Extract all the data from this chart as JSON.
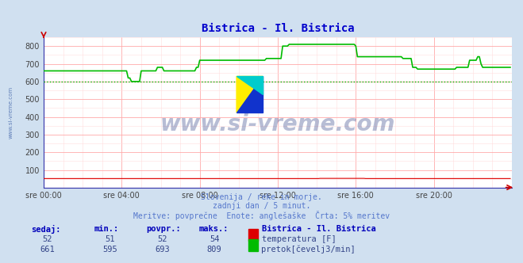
{
  "title": "Bistrica - Il. Bistrica",
  "title_color": "#0000cc",
  "bg_color": "#d0e0f0",
  "plot_bg_color": "#ffffff",
  "grid_color_major": "#ffaaaa",
  "grid_color_minor": "#ffdddd",
  "xlim": [
    0,
    288
  ],
  "ylim": [
    0,
    850
  ],
  "yticks": [
    100,
    200,
    300,
    400,
    500,
    600,
    700,
    800
  ],
  "xtick_labels": [
    "sre 00:00",
    "sre 04:00",
    "sre 08:00",
    "sre 12:00",
    "sre 16:00",
    "sre 20:00"
  ],
  "xtick_positions": [
    0,
    48,
    96,
    144,
    192,
    240
  ],
  "temp_color": "#dd0000",
  "flow_color": "#00bb00",
  "avg_line_color": "#00bb00",
  "avg_line_value": 600,
  "watermark": "www.si-vreme.com",
  "watermark_color": "#334488",
  "subtitle1": "Slovenija / reke in morje.",
  "subtitle2": "zadnji dan / 5 minut.",
  "subtitle3": "Meritve: povprečne  Enote: anglešaške  Črta: 5% meritev",
  "subtitle_color": "#5577cc",
  "footer_label_color": "#0000bb",
  "footer_value_color": "#334488",
  "legend_title": "Bistrica - Il. Bistrica",
  "legend_temp_label": "temperatura [F]",
  "legend_flow_label": "pretok[čevelj3/min]",
  "stat_headers": [
    "sedaj:",
    "min.:",
    "povpr.:",
    "maks.:"
  ],
  "stat_temp": [
    52,
    51,
    52,
    54
  ],
  "stat_flow": [
    661,
    595,
    693,
    809
  ],
  "temp_data_raw": [
    52,
    52,
    52,
    52,
    52,
    52,
    52,
    52,
    52,
    52,
    52,
    52,
    52,
    52,
    52,
    52,
    52,
    52,
    52,
    52,
    52,
    52,
    52,
    52,
    52,
    52,
    52,
    52,
    52,
    52,
    52,
    52,
    52,
    52,
    52,
    52,
    52,
    52,
    52,
    52,
    52,
    52,
    52,
    52,
    52,
    52,
    52,
    52,
    52,
    52,
    52,
    52,
    52,
    52,
    52,
    52,
    52,
    52,
    52,
    52,
    52,
    52,
    52,
    52,
    52,
    52,
    52,
    52,
    52,
    52,
    52,
    52,
    52,
    52,
    52,
    52,
    52,
    52,
    52,
    52,
    52,
    52,
    52,
    52,
    52,
    52,
    52,
    52,
    52,
    52,
    52,
    52,
    52,
    52,
    52,
    52,
    52,
    52,
    52,
    52,
    52,
    52,
    52,
    52,
    52,
    52,
    52,
    52,
    52,
    52,
    52,
    52,
    52,
    52,
    52,
    52,
    52,
    52,
    52,
    52,
    52,
    52,
    52,
    52,
    52,
    52,
    52,
    52,
    52,
    52,
    52,
    52,
    52,
    52,
    52,
    52,
    52,
    52,
    52,
    52,
    52,
    52,
    52,
    52,
    52,
    52,
    52,
    52,
    52,
    52,
    52,
    52,
    52,
    52,
    52,
    52,
    52,
    52,
    52,
    52,
    52,
    52,
    52,
    52,
    52,
    52,
    52,
    52,
    52,
    52,
    53,
    53,
    53,
    53,
    53,
    53,
    53,
    53,
    53,
    53,
    53,
    53,
    53,
    53,
    53,
    53,
    53,
    53,
    53,
    53,
    53,
    53,
    53,
    53,
    53,
    53,
    53,
    53,
    52,
    52,
    52,
    52,
    52,
    52,
    52,
    52,
    52,
    52,
    52,
    52,
    52,
    52,
    52,
    52,
    52,
    52,
    52,
    52,
    52,
    52,
    52,
    52,
    52,
    52,
    52,
    52,
    52,
    52,
    52,
    52,
    52,
    52,
    52,
    52,
    52,
    52,
    52,
    52,
    52,
    52,
    52,
    52,
    52,
    52,
    52,
    52,
    52,
    52,
    52,
    52,
    52,
    52,
    52,
    52,
    52,
    52,
    52,
    52,
    52,
    52,
    52,
    52,
    52,
    52,
    52,
    52,
    52,
    52,
    52,
    52,
    52,
    52,
    52,
    52,
    52,
    52,
    52,
    52,
    52,
    52,
    52,
    52,
    52,
    52,
    52,
    52,
    52,
    52
  ],
  "flow_data_raw": [
    660,
    660,
    660,
    660,
    660,
    660,
    660,
    660,
    660,
    660,
    660,
    660,
    660,
    660,
    660,
    660,
    660,
    660,
    660,
    660,
    660,
    660,
    660,
    660,
    660,
    660,
    660,
    660,
    660,
    660,
    660,
    660,
    660,
    660,
    660,
    660,
    660,
    660,
    660,
    660,
    660,
    660,
    660,
    660,
    660,
    660,
    660,
    660,
    660,
    660,
    660,
    660,
    620,
    620,
    600,
    600,
    600,
    600,
    600,
    600,
    660,
    660,
    660,
    660,
    660,
    660,
    660,
    660,
    660,
    660,
    680,
    680,
    680,
    680,
    660,
    660,
    660,
    660,
    660,
    660,
    660,
    660,
    660,
    660,
    660,
    660,
    660,
    660,
    660,
    660,
    660,
    660,
    660,
    660,
    680,
    680,
    720,
    720,
    720,
    720,
    720,
    720,
    720,
    720,
    720,
    720,
    720,
    720,
    720,
    720,
    720,
    720,
    720,
    720,
    720,
    720,
    720,
    720,
    720,
    720,
    720,
    720,
    720,
    720,
    720,
    720,
    720,
    720,
    720,
    720,
    720,
    720,
    720,
    720,
    720,
    720,
    720,
    730,
    730,
    730,
    730,
    730,
    730,
    730,
    730,
    730,
    730,
    800,
    800,
    800,
    800,
    810,
    810,
    810,
    810,
    810,
    810,
    810,
    810,
    810,
    810,
    810,
    810,
    810,
    810,
    810,
    810,
    810,
    810,
    810,
    810,
    810,
    810,
    810,
    810,
    810,
    810,
    810,
    810,
    810,
    810,
    810,
    810,
    810,
    810,
    810,
    810,
    810,
    810,
    810,
    810,
    810,
    800,
    740,
    740,
    740,
    740,
    740,
    740,
    740,
    740,
    740,
    740,
    740,
    740,
    740,
    740,
    740,
    740,
    740,
    740,
    740,
    740,
    740,
    740,
    740,
    740,
    740,
    740,
    740,
    740,
    730,
    730,
    730,
    730,
    730,
    730,
    680,
    680,
    680,
    670,
    670,
    670,
    670,
    670,
    670,
    670,
    670,
    670,
    670,
    670,
    670,
    670,
    670,
    670,
    670,
    670,
    670,
    670,
    670,
    670,
    670,
    670,
    670,
    680,
    680,
    680,
    680,
    680,
    680,
    680,
    680,
    720,
    720,
    720,
    720,
    720,
    740,
    740,
    700,
    680,
    680,
    680,
    680,
    680,
    680,
    680,
    680,
    680,
    680,
    680,
    680,
    680,
    680,
    680,
    680,
    680,
    680
  ]
}
